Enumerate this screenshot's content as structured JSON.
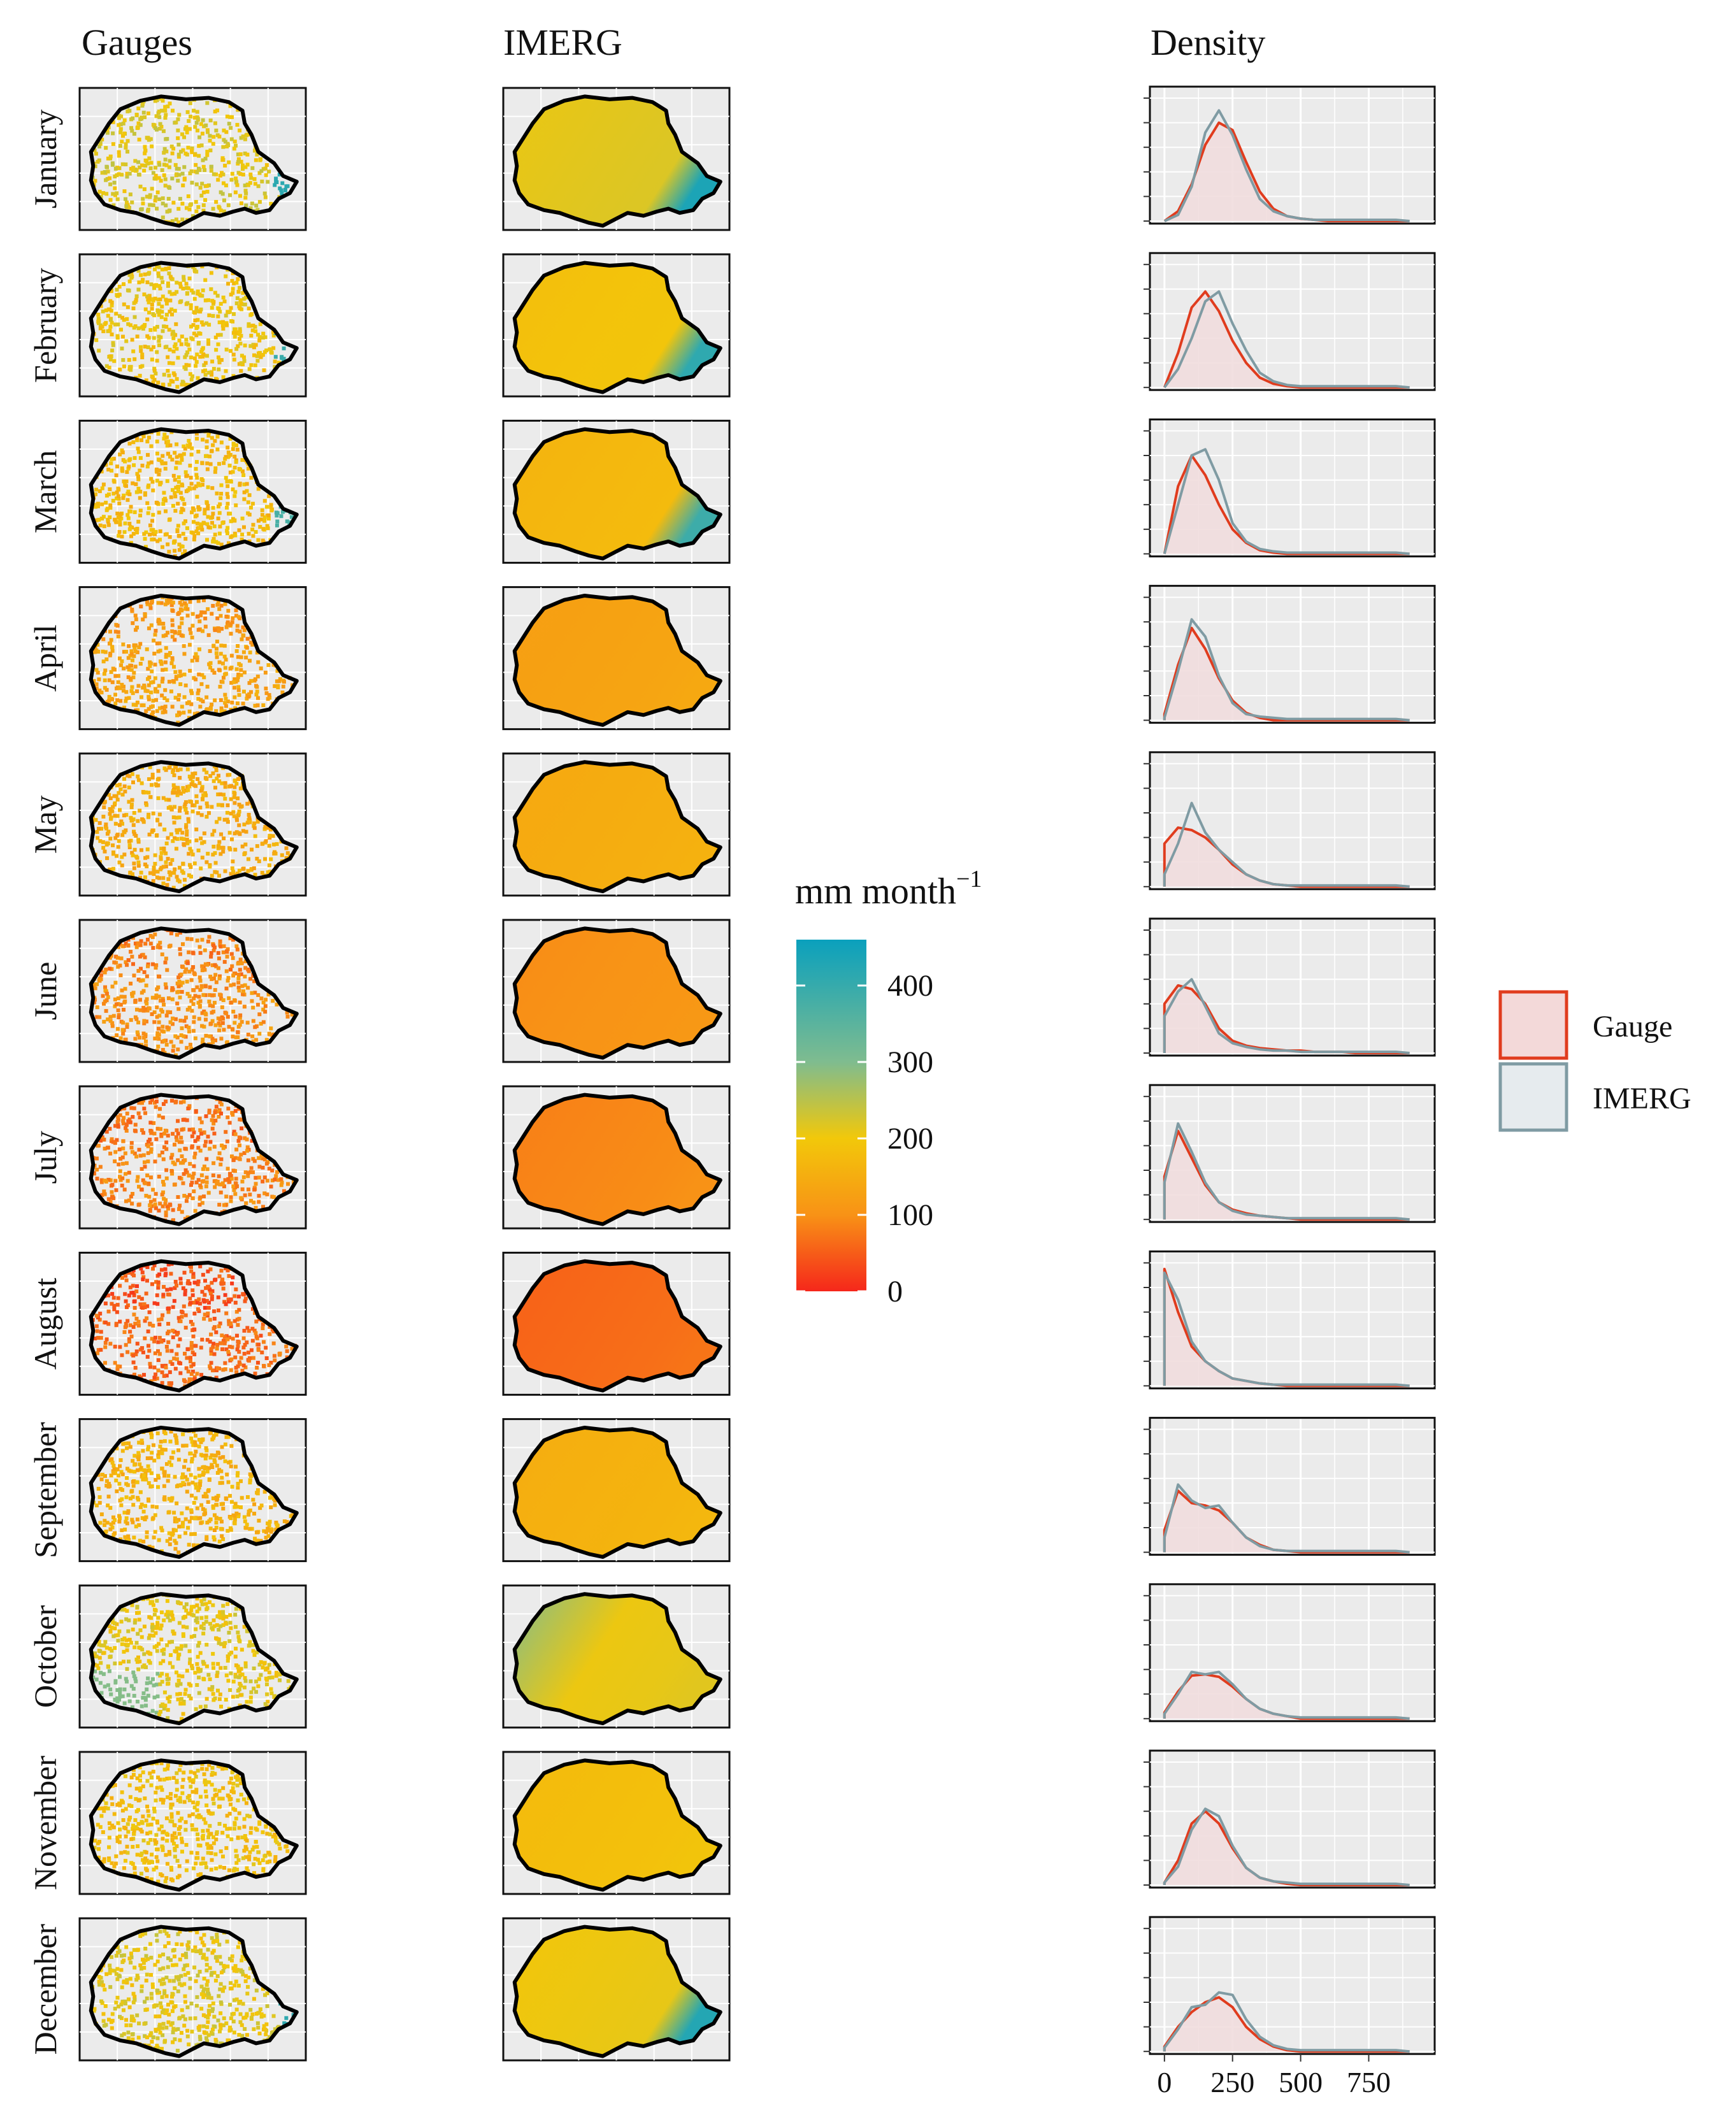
{
  "chart_data": {
    "type": "small-multiples",
    "title": "",
    "column_titles": {
      "gauges": "Gauges",
      "imerg": "IMERG",
      "density": "Density"
    },
    "months": [
      "January",
      "February",
      "March",
      "April",
      "May",
      "June",
      "July",
      "August",
      "September",
      "October",
      "November",
      "December"
    ],
    "colorbar": {
      "title": "mm month",
      "title_superscript": "−1",
      "ticks": [
        "0",
        "100",
        "200",
        "300",
        "400"
      ],
      "range": [
        0,
        460
      ],
      "colors": {
        "0": "#f5271b",
        "100": "#f89216",
        "200": "#f2c80a",
        "300": "#7fbc8f",
        "460": "#0aa0bd"
      }
    },
    "maps": {
      "gauges_mean_mm": [
        215,
        195,
        175,
        135,
        150,
        105,
        90,
        65,
        160,
        205,
        185,
        210
      ],
      "imerg_mean_mm": [
        215,
        190,
        170,
        130,
        148,
        102,
        90,
        62,
        158,
        205,
        182,
        205
      ],
      "east_tip_high": [
        true,
        true,
        true,
        false,
        false,
        false,
        false,
        false,
        false,
        false,
        false,
        true
      ],
      "southwest_high": [
        false,
        false,
        false,
        false,
        false,
        false,
        false,
        false,
        false,
        true,
        false,
        false
      ]
    },
    "density": {
      "xlim": [
        -30,
        950
      ],
      "x_ticks": [
        "0",
        "250",
        "500",
        "750"
      ],
      "x_tick_values": [
        0,
        250,
        500,
        750
      ],
      "series_names": [
        "Gauge",
        "IMERG"
      ],
      "colors": {
        "gauge_line": "#e03c1e",
        "gauge_fill": "#f3d9d9",
        "imerg_line": "#7f9ba3",
        "imerg_fill": "#e6ebee",
        "panel_bg": "#ebebeb"
      },
      "x_grid": [
        0,
        50,
        100,
        150,
        200,
        250,
        300,
        350,
        400,
        450,
        500,
        550,
        600,
        650,
        700,
        750,
        800,
        850,
        900
      ],
      "gauge_y": [
        [
          0.0,
          0.08,
          0.3,
          0.62,
          0.8,
          0.74,
          0.48,
          0.24,
          0.1,
          0.04,
          0.02,
          0.01,
          0.0,
          0,
          0,
          0,
          0,
          0,
          0
        ],
        [
          0.0,
          0.28,
          0.65,
          0.78,
          0.62,
          0.38,
          0.2,
          0.08,
          0.03,
          0.01,
          0.0,
          0,
          0,
          0,
          0,
          0,
          0,
          0,
          0
        ],
        [
          0.0,
          0.55,
          0.8,
          0.64,
          0.4,
          0.2,
          0.09,
          0.03,
          0.01,
          0.0,
          0,
          0,
          0,
          0,
          0,
          0,
          0,
          0,
          0
        ],
        [
          0.05,
          0.45,
          0.75,
          0.58,
          0.34,
          0.16,
          0.06,
          0.02,
          0.0,
          0,
          0,
          0,
          0,
          0,
          0,
          0,
          0,
          0,
          0
        ],
        [
          0.35,
          0.48,
          0.46,
          0.4,
          0.3,
          0.18,
          0.1,
          0.05,
          0.02,
          0.01,
          0.0,
          0,
          0,
          0,
          0,
          0,
          0,
          0,
          0
        ],
        [
          0.4,
          0.55,
          0.52,
          0.4,
          0.2,
          0.1,
          0.06,
          0.04,
          0.03,
          0.02,
          0.02,
          0.01,
          0.01,
          0.01,
          0.0,
          0,
          0,
          0,
          0
        ],
        [
          0.35,
          0.72,
          0.5,
          0.28,
          0.14,
          0.08,
          0.05,
          0.03,
          0.02,
          0.01,
          0.0,
          0,
          0,
          0,
          0,
          0,
          0,
          0,
          0
        ],
        [
          0.95,
          0.6,
          0.32,
          0.2,
          0.12,
          0.06,
          0.04,
          0.02,
          0.01,
          0.0,
          0,
          0,
          0,
          0,
          0,
          0,
          0,
          0,
          0
        ],
        [
          0.18,
          0.5,
          0.4,
          0.38,
          0.34,
          0.24,
          0.12,
          0.06,
          0.02,
          0.01,
          0.0,
          0,
          0,
          0,
          0,
          0,
          0,
          0,
          0
        ],
        [
          0.05,
          0.22,
          0.35,
          0.36,
          0.34,
          0.26,
          0.16,
          0.08,
          0.04,
          0.02,
          0.0,
          0,
          0,
          0,
          0,
          0,
          0,
          0,
          0
        ],
        [
          0.02,
          0.2,
          0.5,
          0.6,
          0.5,
          0.3,
          0.14,
          0.06,
          0.03,
          0.01,
          0.0,
          0,
          0,
          0,
          0,
          0,
          0,
          0,
          0
        ],
        [
          0.04,
          0.2,
          0.32,
          0.4,
          0.44,
          0.36,
          0.2,
          0.1,
          0.04,
          0.01,
          0.0,
          0,
          0,
          0,
          0,
          0,
          0,
          0,
          0
        ]
      ],
      "imerg_y": [
        [
          0.0,
          0.05,
          0.28,
          0.72,
          0.9,
          0.7,
          0.42,
          0.18,
          0.08,
          0.04,
          0.02,
          0.01,
          0.01,
          0.01,
          0.01,
          0.01,
          0.01,
          0.01,
          0.0
        ],
        [
          0.0,
          0.15,
          0.4,
          0.7,
          0.78,
          0.52,
          0.3,
          0.12,
          0.05,
          0.02,
          0.01,
          0.01,
          0.01,
          0.01,
          0.01,
          0.01,
          0.01,
          0.01,
          0.0
        ],
        [
          0.0,
          0.4,
          0.8,
          0.85,
          0.6,
          0.25,
          0.1,
          0.04,
          0.02,
          0.01,
          0.01,
          0.01,
          0.01,
          0.01,
          0.01,
          0.01,
          0.01,
          0.01,
          0.0
        ],
        [
          0.02,
          0.4,
          0.82,
          0.68,
          0.36,
          0.14,
          0.05,
          0.03,
          0.02,
          0.01,
          0.01,
          0.01,
          0.01,
          0.01,
          0.01,
          0.01,
          0.01,
          0.01,
          0.0
        ],
        [
          0.1,
          0.35,
          0.68,
          0.44,
          0.3,
          0.2,
          0.1,
          0.05,
          0.02,
          0.01,
          0.01,
          0.01,
          0.01,
          0.01,
          0.01,
          0.01,
          0.01,
          0.01,
          0.0
        ],
        [
          0.3,
          0.5,
          0.6,
          0.38,
          0.16,
          0.08,
          0.05,
          0.03,
          0.02,
          0.02,
          0.01,
          0.01,
          0.01,
          0.01,
          0.01,
          0.01,
          0.01,
          0.01,
          0.0
        ],
        [
          0.3,
          0.78,
          0.55,
          0.3,
          0.14,
          0.07,
          0.04,
          0.03,
          0.02,
          0.01,
          0.01,
          0.01,
          0.01,
          0.01,
          0.01,
          0.01,
          0.01,
          0.01,
          0.0
        ],
        [
          0.92,
          0.7,
          0.36,
          0.2,
          0.12,
          0.06,
          0.04,
          0.02,
          0.01,
          0.01,
          0.01,
          0.01,
          0.01,
          0.01,
          0.01,
          0.01,
          0.01,
          0.01,
          0.0
        ],
        [
          0.12,
          0.55,
          0.42,
          0.36,
          0.38,
          0.24,
          0.12,
          0.05,
          0.02,
          0.01,
          0.01,
          0.01,
          0.01,
          0.01,
          0.01,
          0.01,
          0.01,
          0.01,
          0.0
        ],
        [
          0.04,
          0.2,
          0.38,
          0.36,
          0.38,
          0.28,
          0.16,
          0.08,
          0.04,
          0.02,
          0.01,
          0.01,
          0.01,
          0.01,
          0.01,
          0.01,
          0.01,
          0.01,
          0.0
        ],
        [
          0.02,
          0.15,
          0.45,
          0.62,
          0.56,
          0.32,
          0.14,
          0.06,
          0.03,
          0.02,
          0.01,
          0.01,
          0.01,
          0.01,
          0.01,
          0.01,
          0.01,
          0.01,
          0.0
        ],
        [
          0.03,
          0.18,
          0.36,
          0.38,
          0.48,
          0.46,
          0.26,
          0.12,
          0.05,
          0.02,
          0.01,
          0.01,
          0.01,
          0.01,
          0.01,
          0.01,
          0.01,
          0.01,
          0.0
        ]
      ]
    },
    "legend": {
      "placement": "right",
      "entries": [
        "Gauge",
        "IMERG"
      ]
    }
  }
}
